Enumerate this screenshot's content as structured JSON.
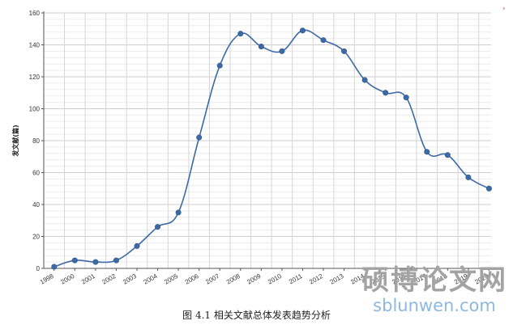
{
  "chart_data": {
    "type": "line",
    "title": "",
    "xlabel": "",
    "ylabel": "发文献(篇)",
    "categories": [
      "1998",
      "2000",
      "2001",
      "2002",
      "2003",
      "2004",
      "2005",
      "2006",
      "2007",
      "2008",
      "2009",
      "2010",
      "2011",
      "2012",
      "2013",
      "2014",
      "2015",
      "2016",
      "2017",
      "2018",
      "2019",
      "2020"
    ],
    "series": [
      {
        "values": [
          1,
          5,
          4,
          5,
          14,
          26,
          35,
          82,
          127,
          147,
          139,
          136,
          149,
          143,
          136,
          118,
          110,
          107,
          73,
          71,
          57,
          50
        ]
      }
    ],
    "ylim": [
      0,
      160
    ],
    "yticks": [
      0,
      20,
      40,
      60,
      80,
      100,
      120,
      140,
      160
    ],
    "grid": true,
    "legend": "none",
    "line_color": "#3d6aa6",
    "grid_color": "#d9d9d9"
  },
  "caption": "图 4.1 相关文献总体发表趋势分析",
  "watermark": {
    "text": "硕博论文网",
    "url": "sblunwen.com"
  },
  "side_mark": "›"
}
